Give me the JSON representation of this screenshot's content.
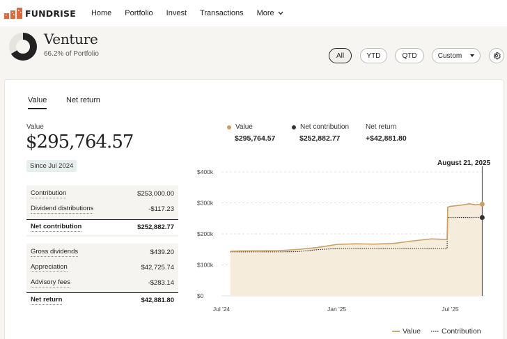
{
  "nav": {
    "brand": "FUNDRISE",
    "links": [
      "Home",
      "Portfolio",
      "Invest",
      "Transactions",
      "More"
    ]
  },
  "header": {
    "title": "Venture",
    "subtitle": "66.2% of Portfolio",
    "portfolio_share": 0.662,
    "range_buttons": [
      "All",
      "YTD",
      "QTD",
      "Custom"
    ],
    "active_range": "All"
  },
  "tabs": [
    "Value",
    "Net return"
  ],
  "summary": {
    "value_label": "Value",
    "value": "$295,764.57",
    "since": "Since Jul 2024"
  },
  "contribution_table": [
    {
      "label": "Contribution",
      "value": "$253,000.00"
    },
    {
      "label": "Dividend distributions",
      "value": "-$117.23"
    },
    {
      "label": "Net contribution",
      "value": "$252,882.77",
      "total": true
    }
  ],
  "return_table": [
    {
      "label": "Gross dividends",
      "value": "$439.20"
    },
    {
      "label": "Appreciation",
      "value": "$42,725.74"
    },
    {
      "label": "Advisory fees",
      "value": "-$283.14"
    },
    {
      "label": "Net return",
      "value": "$42,881.80",
      "total": true
    }
  ],
  "chart_legend": {
    "value_label": "Value",
    "value": "$295,764.57",
    "contribution_label": "Net contribution",
    "contribution": "$252,882.77",
    "net_return_label": "Net return",
    "net_return": "+$42,881.80",
    "date": "August 21, 2025"
  },
  "colors": {
    "value_line": "#c9a063",
    "contribution_line": "#333333",
    "area_fill": "#f6ecdc",
    "brand": "#e0673b"
  },
  "chart_data": {
    "type": "area",
    "x_ticks": [
      "Jul '24",
      "Jan '25",
      "Jul '25"
    ],
    "y_ticks": [
      "$0",
      "$100k",
      "$200k",
      "$300k",
      "$400k"
    ],
    "ylim": [
      0,
      400000
    ],
    "grid": true,
    "legend": "bottom-right",
    "legend_labels": [
      "Value",
      "Contribution"
    ],
    "x": [
      "2024-07-15",
      "2024-08-01",
      "2024-09-01",
      "2024-10-01",
      "2024-11-01",
      "2024-12-01",
      "2025-01-01",
      "2025-02-01",
      "2025-03-01",
      "2025-04-01",
      "2025-05-01",
      "2025-06-01",
      "2025-06-26",
      "2025-06-27",
      "2025-07-01",
      "2025-07-15",
      "2025-08-01",
      "2025-08-10",
      "2025-08-21"
    ],
    "series": [
      {
        "name": "Value",
        "values": [
          144000,
          145000,
          145500,
          146000,
          150000,
          156000,
          166000,
          168000,
          167000,
          169000,
          177000,
          184000,
          182000,
          286000,
          289000,
          292000,
          297000,
          294000,
          295765
        ]
      },
      {
        "name": "Contribution",
        "values": [
          142000,
          142000,
          142000,
          142000,
          143000,
          149000,
          153000,
          153000,
          153000,
          153000,
          153000,
          153000,
          153000,
          252883,
          252883,
          252883,
          252883,
          252883,
          252883
        ]
      }
    ]
  }
}
